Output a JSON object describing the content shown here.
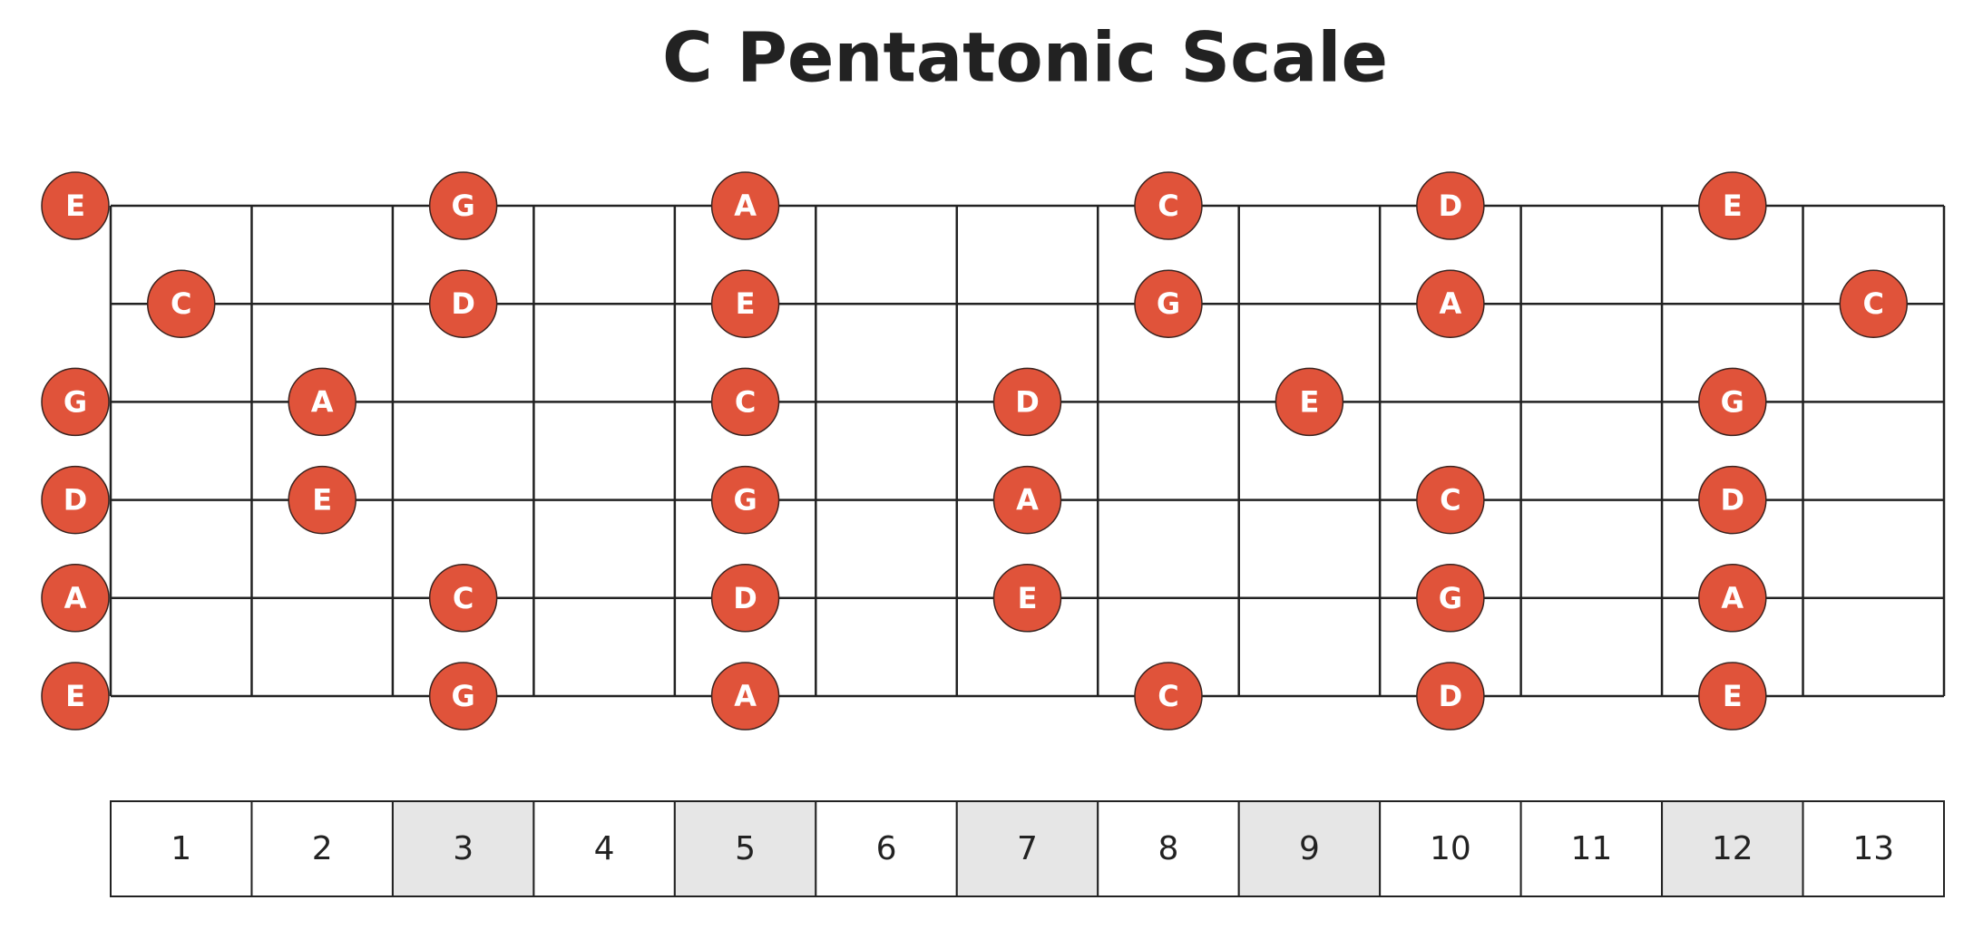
{
  "title": "C Pentatonic Scale",
  "strings": [
    {
      "notes": [
        {
          "fret": 0,
          "note": "E"
        },
        {
          "fret": 3,
          "note": "G"
        },
        {
          "fret": 5,
          "note": "A"
        },
        {
          "fret": 8,
          "note": "C"
        },
        {
          "fret": 10,
          "note": "D"
        },
        {
          "fret": 12,
          "note": "E"
        }
      ]
    },
    {
      "notes": [
        {
          "fret": 1,
          "note": "C"
        },
        {
          "fret": 3,
          "note": "D"
        },
        {
          "fret": 5,
          "note": "E"
        },
        {
          "fret": 8,
          "note": "G"
        },
        {
          "fret": 10,
          "note": "A"
        },
        {
          "fret": 13,
          "note": "C"
        }
      ]
    },
    {
      "notes": [
        {
          "fret": 0,
          "note": "G"
        },
        {
          "fret": 2,
          "note": "A"
        },
        {
          "fret": 5,
          "note": "C"
        },
        {
          "fret": 7,
          "note": "D"
        },
        {
          "fret": 9,
          "note": "E"
        },
        {
          "fret": 12,
          "note": "G"
        }
      ]
    },
    {
      "notes": [
        {
          "fret": 0,
          "note": "D"
        },
        {
          "fret": 2,
          "note": "E"
        },
        {
          "fret": 5,
          "note": "G"
        },
        {
          "fret": 7,
          "note": "A"
        },
        {
          "fret": 10,
          "note": "C"
        },
        {
          "fret": 12,
          "note": "D"
        }
      ]
    },
    {
      "notes": [
        {
          "fret": 0,
          "note": "A"
        },
        {
          "fret": 3,
          "note": "C"
        },
        {
          "fret": 5,
          "note": "D"
        },
        {
          "fret": 7,
          "note": "E"
        },
        {
          "fret": 10,
          "note": "G"
        },
        {
          "fret": 12,
          "note": "A"
        }
      ]
    },
    {
      "notes": [
        {
          "fret": 0,
          "note": "E"
        },
        {
          "fret": 3,
          "note": "G"
        },
        {
          "fret": 5,
          "note": "A"
        },
        {
          "fret": 8,
          "note": "C"
        },
        {
          "fret": 10,
          "note": "D"
        },
        {
          "fret": 12,
          "note": "E"
        }
      ]
    }
  ],
  "fret_numbers": [
    1,
    2,
    3,
    4,
    5,
    6,
    7,
    8,
    9,
    10,
    11,
    12,
    13
  ],
  "marked_frets": [
    3,
    5,
    7,
    9,
    12
  ]
}
